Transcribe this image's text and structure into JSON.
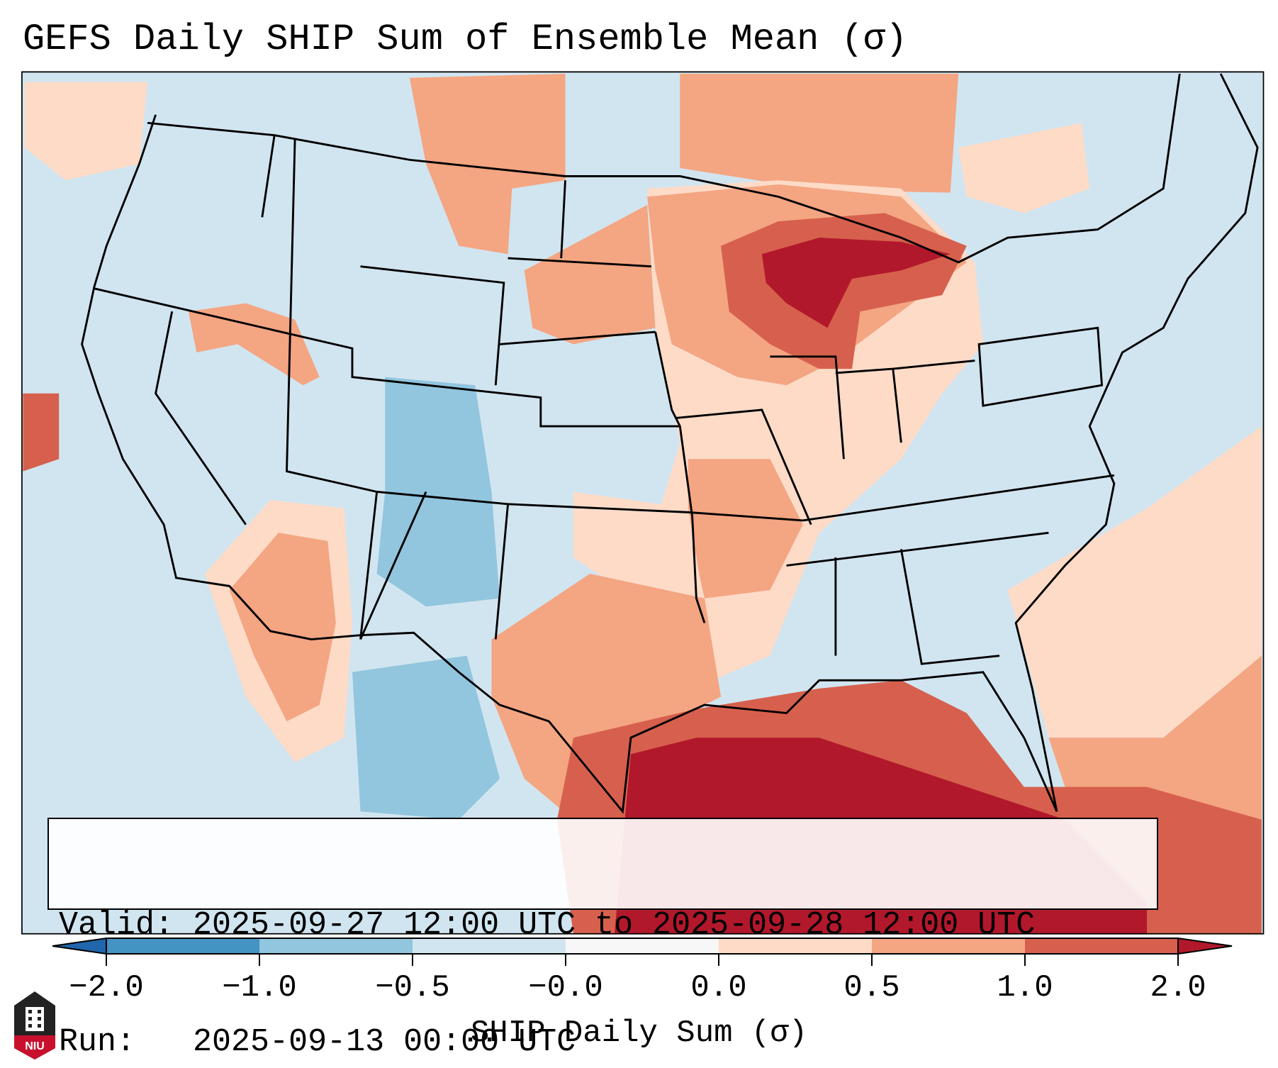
{
  "title": "GEFS Daily SHIP Sum of Ensemble Mean (σ)",
  "info": {
    "valid_label": "Valid:",
    "valid_value": "2025-09-27 12:00 UTC to 2025-09-28 12:00 UTC",
    "run_label": "Run:",
    "run_value": "2025-09-13 00:00 UTC"
  },
  "colorbar": {
    "label": "SHIP Daily Sum (σ)",
    "ticks": [
      "−2.0",
      "−1.0",
      "−0.5",
      "−0.0",
      "0.0",
      "0.5",
      "1.0",
      "2.0"
    ],
    "colors": [
      "#2166ac",
      "#4393c3",
      "#92c5de",
      "#d1e5f0",
      "#f7f7f7",
      "#fddbc7",
      "#f4a582",
      "#d6604d",
      "#b2182b"
    ]
  },
  "logo": {
    "text": "NIU"
  }
}
